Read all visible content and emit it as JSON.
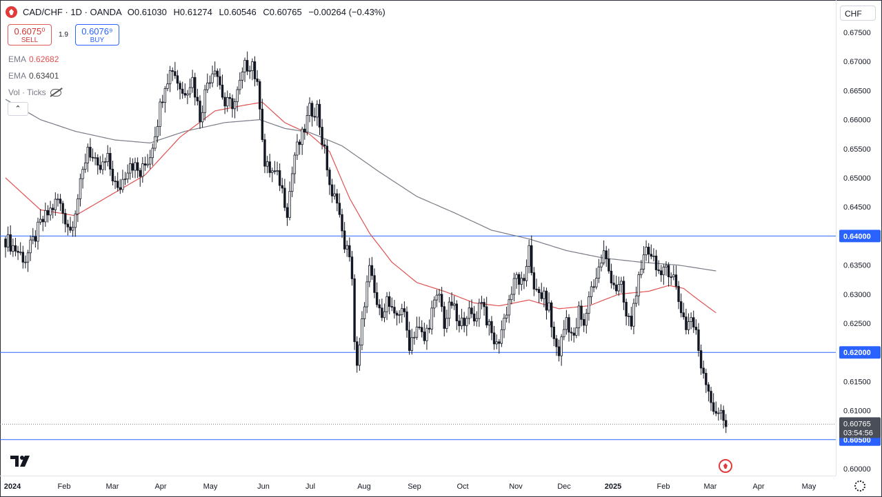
{
  "header": {
    "symbol": "CAD/CHF · 1D · OANDA",
    "open_label": "O",
    "open": "0.61030",
    "high_label": "H",
    "high": "0.61274",
    "low_label": "L",
    "low": "0.60546",
    "close_label": "C",
    "close": "0.60765",
    "change": "−0.00264 (−0.43%)"
  },
  "trade": {
    "sell_price": "0.6075⁰",
    "sell_label": "SELL",
    "spread": "1.9",
    "buy_price": "0.6076⁹",
    "buy_label": "BUY"
  },
  "legend": {
    "ema1_label": "EMA",
    "ema1_value": "0.62682",
    "ema2_label": "EMA",
    "ema2_value": "0.63401",
    "vol_label": "Vol · Ticks"
  },
  "controls": {
    "collapse": "⌃",
    "currency": "CHF"
  },
  "colors": {
    "up": "#ffffff",
    "down": "#131722",
    "wick": "#131722",
    "ema_fast": "#e05050",
    "ema_slow": "#787b86",
    "level": "#2962ff",
    "level_label_bg": "#2962ff",
    "last_price_bg": "#4a4e59"
  },
  "chart_data": {
    "type": "candlestick",
    "y_axis": {
      "min": 0.6,
      "max": 0.6775,
      "ticks": [
        "0.60000",
        "0.60500",
        "0.61000",
        "0.61500",
        "0.62000",
        "0.62500",
        "0.63000",
        "0.63500",
        "0.64000",
        "0.64500",
        "0.65000",
        "0.65500",
        "0.66000",
        "0.66500",
        "0.67000",
        "0.67500"
      ]
    },
    "x_axis": {
      "labels": [
        "2024",
        "Feb",
        "Mar",
        "Apr",
        "May",
        "Jun",
        "Jul",
        "Aug",
        "Sep",
        "Oct",
        "Nov",
        "Dec",
        "2025",
        "Feb",
        "Mar",
        "Apr",
        "May"
      ],
      "bold_labels": [
        "2024",
        "2025"
      ]
    },
    "horizontal_levels": [
      {
        "value": 0.64,
        "label": "0.64000"
      },
      {
        "value": 0.62,
        "label": "0.62000"
      },
      {
        "value": 0.605,
        "label": "0.60500"
      }
    ],
    "last_price": {
      "value": 0.60765,
      "label": "0.60765",
      "countdown": "03:54:56"
    },
    "close_path": [
      [
        0,
        0.6395
      ],
      [
        8,
        0.636
      ],
      [
        14,
        0.642
      ],
      [
        21,
        0.6462
      ],
      [
        26,
        0.641
      ],
      [
        30,
        0.6485
      ],
      [
        33,
        0.6555
      ],
      [
        37,
        0.651
      ],
      [
        41,
        0.653
      ],
      [
        45,
        0.6475
      ],
      [
        50,
        0.653
      ],
      [
        54,
        0.6505
      ],
      [
        58,
        0.654
      ],
      [
        61,
        0.66
      ],
      [
        64,
        0.6665
      ],
      [
        67,
        0.669
      ],
      [
        71,
        0.6645
      ],
      [
        75,
        0.667
      ],
      [
        78,
        0.6605
      ],
      [
        81,
        0.6665
      ],
      [
        84,
        0.6695
      ],
      [
        88,
        0.6625
      ],
      [
        92,
        0.663
      ],
      [
        96,
        0.669
      ],
      [
        99,
        0.67
      ],
      [
        102,
        0.663
      ],
      [
        104,
        0.652
      ],
      [
        107,
        0.651
      ],
      [
        110,
        0.6495
      ],
      [
        113,
        0.6445
      ],
      [
        116,
        0.654
      ],
      [
        119,
        0.657
      ],
      [
        122,
        0.6615
      ],
      [
        125,
        0.662
      ],
      [
        127,
        0.6565
      ],
      [
        129,
        0.652
      ],
      [
        131,
        0.646
      ],
      [
        133,
        0.647
      ],
      [
        135,
        0.64
      ],
      [
        137,
        0.6375
      ],
      [
        139,
        0.6335
      ],
      [
        140,
        0.622
      ],
      [
        141,
        0.617
      ],
      [
        142,
        0.6205
      ],
      [
        144,
        0.629
      ],
      [
        146,
        0.634
      ],
      [
        148,
        0.63
      ],
      [
        150,
        0.6265
      ],
      [
        153,
        0.629
      ],
      [
        156,
        0.6255
      ],
      [
        159,
        0.628
      ],
      [
        162,
        0.6215
      ],
      [
        165,
        0.6245
      ],
      [
        168,
        0.622
      ],
      [
        171,
        0.627
      ],
      [
        174,
        0.63
      ],
      [
        176,
        0.625
      ],
      [
        179,
        0.6285
      ],
      [
        182,
        0.624
      ],
      [
        185,
        0.627
      ],
      [
        188,
        0.6255
      ],
      [
        191,
        0.6295
      ],
      [
        194,
        0.624
      ],
      [
        197,
        0.621
      ],
      [
        199,
        0.624
      ],
      [
        202,
        0.629
      ],
      [
        205,
        0.633
      ],
      [
        208,
        0.631
      ],
      [
        210,
        0.639
      ],
      [
        212,
        0.63
      ],
      [
        215,
        0.63
      ],
      [
        218,
        0.6275
      ],
      [
        220,
        0.622
      ],
      [
        222,
        0.62
      ],
      [
        225,
        0.626
      ],
      [
        228,
        0.622
      ],
      [
        230,
        0.627
      ],
      [
        232,
        0.624
      ],
      [
        234,
        0.63
      ],
      [
        237,
        0.633
      ],
      [
        240,
        0.637
      ],
      [
        242,
        0.634
      ],
      [
        245,
        0.631
      ],
      [
        247,
        0.631
      ],
      [
        249,
        0.626
      ],
      [
        251,
        0.625
      ],
      [
        253,
        0.631
      ],
      [
        255,
        0.633
      ],
      [
        257,
        0.6385
      ],
      [
        259,
        0.637
      ],
      [
        261,
        0.6355
      ],
      [
        263,
        0.632
      ],
      [
        265,
        0.635
      ],
      [
        268,
        0.633
      ],
      [
        270,
        0.629
      ],
      [
        273,
        0.6245
      ],
      [
        275,
        0.626
      ],
      [
        277,
        0.623
      ],
      [
        279,
        0.618
      ],
      [
        281,
        0.6155
      ],
      [
        283,
        0.612
      ],
      [
        285,
        0.6085
      ],
      [
        287,
        0.6105
      ],
      [
        289,
        0.6076
      ]
    ],
    "ema_fast": [
      [
        0,
        0.65
      ],
      [
        14,
        0.6445
      ],
      [
        28,
        0.6435
      ],
      [
        42,
        0.647
      ],
      [
        56,
        0.6505
      ],
      [
        70,
        0.657
      ],
      [
        84,
        0.6615
      ],
      [
        96,
        0.6625
      ],
      [
        103,
        0.663
      ],
      [
        112,
        0.6595
      ],
      [
        122,
        0.6575
      ],
      [
        130,
        0.6545
      ],
      [
        138,
        0.6465
      ],
      [
        146,
        0.6405
      ],
      [
        155,
        0.6355
      ],
      [
        165,
        0.632
      ],
      [
        176,
        0.6305
      ],
      [
        188,
        0.6285
      ],
      [
        198,
        0.628
      ],
      [
        210,
        0.629
      ],
      [
        222,
        0.6275
      ],
      [
        234,
        0.628
      ],
      [
        246,
        0.63
      ],
      [
        258,
        0.6305
      ],
      [
        266,
        0.6315
      ],
      [
        272,
        0.631
      ],
      [
        278,
        0.629
      ],
      [
        285,
        0.6268
      ]
    ],
    "ema_slow": [
      [
        0,
        0.6635
      ],
      [
        14,
        0.66
      ],
      [
        28,
        0.658
      ],
      [
        44,
        0.6565
      ],
      [
        58,
        0.656
      ],
      [
        72,
        0.658
      ],
      [
        88,
        0.6595
      ],
      [
        102,
        0.66
      ],
      [
        112,
        0.6585
      ],
      [
        122,
        0.6578
      ],
      [
        135,
        0.6555
      ],
      [
        150,
        0.651
      ],
      [
        165,
        0.6468
      ],
      [
        180,
        0.644
      ],
      [
        195,
        0.641
      ],
      [
        210,
        0.6395
      ],
      [
        225,
        0.6375
      ],
      [
        240,
        0.6362
      ],
      [
        255,
        0.6355
      ],
      [
        270,
        0.635
      ],
      [
        285,
        0.634
      ]
    ]
  }
}
